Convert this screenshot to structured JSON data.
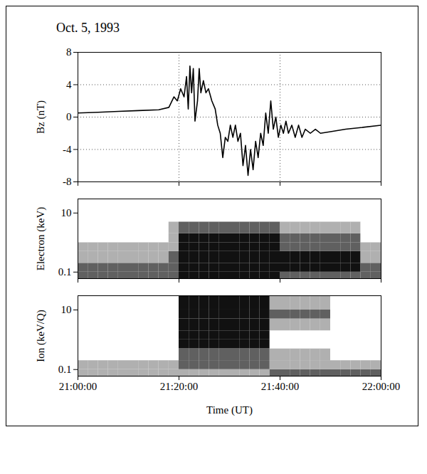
{
  "chart_data": [
    {
      "type": "line",
      "title": "Oct. 5, 1993",
      "ylabel": "Bz (nT)",
      "color": "#000000",
      "grid": true,
      "tick_labels": "y",
      "xlim": [
        "21:00:00",
        "22:00:00"
      ],
      "xticks": [
        "21:00:00",
        "21:20:00",
        "21:40:00",
        "22:00:00"
      ],
      "ylim": [
        -8,
        8
      ],
      "yticks": [
        -8,
        -4,
        0,
        4,
        8
      ],
      "x": [
        "21:00:00",
        "21:04:00",
        "21:08:00",
        "21:12:00",
        "21:16:00",
        "21:18:00",
        "21:19:00",
        "21:19:40",
        "21:20:20",
        "21:21:00",
        "21:21:30",
        "21:21:50",
        "21:22:10",
        "21:22:30",
        "21:22:50",
        "21:23:10",
        "21:23:40",
        "21:24:00",
        "21:24:20",
        "21:24:50",
        "21:25:20",
        "21:25:50",
        "21:26:30",
        "21:27:10",
        "21:27:40",
        "21:28:10",
        "21:28:40",
        "21:29:10",
        "21:29:40",
        "21:30:10",
        "21:30:40",
        "21:31:10",
        "21:31:40",
        "21:32:10",
        "21:32:40",
        "21:33:10",
        "21:33:40",
        "21:34:10",
        "21:34:40",
        "21:35:10",
        "21:35:40",
        "21:36:10",
        "21:36:40",
        "21:37:10",
        "21:37:40",
        "21:38:10",
        "21:38:40",
        "21:39:10",
        "21:39:40",
        "21:40:10",
        "21:40:40",
        "21:41:10",
        "21:41:40",
        "21:42:20",
        "21:43:00",
        "21:43:40",
        "21:44:20",
        "21:45:00",
        "21:46:00",
        "21:47:00",
        "21:48:00",
        "21:50:00",
        "21:53:00",
        "21:56:00",
        "22:00:00"
      ],
      "values": [
        0.5,
        0.6,
        0.7,
        0.8,
        0.9,
        1.2,
        2.5,
        2,
        3.5,
        2.5,
        5,
        1,
        6.3,
        3,
        6,
        -0.5,
        2,
        6,
        3,
        4.5,
        3,
        3.5,
        2,
        1,
        -1,
        -2,
        -5,
        -2.5,
        -3,
        -1,
        -2.5,
        -1,
        -3,
        -2,
        -6,
        -3.5,
        -7.2,
        -4,
        -6.5,
        -3,
        -5,
        -2,
        -3.5,
        0.5,
        -2,
        2,
        -1.5,
        0,
        -2.5,
        -1,
        -2,
        -0.5,
        -2,
        -1,
        -2.5,
        -1,
        -2.5,
        -1.5,
        -2,
        -1.5,
        -2,
        -1.8,
        -1.5,
        -1.3,
        -1
      ]
    },
    {
      "type": "heatmap",
      "ylabel": "Electron (keV)",
      "log": "y",
      "tick_labels": "y",
      "xlim": [
        "21:00:00",
        "22:00:00"
      ],
      "xticks": [
        "21:00:00",
        "21:20:00",
        "21:40:00",
        "22:00:00"
      ],
      "ylim": [
        0.06,
        30
      ],
      "yticks": [
        0.1,
        10
      ],
      "time_bins": [
        "21:00:00",
        "21:02:00",
        "21:04:00",
        "21:06:00",
        "21:08:00",
        "21:10:00",
        "21:12:00",
        "21:14:00",
        "21:16:00",
        "21:18:00",
        "21:20:00",
        "21:22:00",
        "21:24:00",
        "21:26:00",
        "21:28:00",
        "21:30:00",
        "21:32:00",
        "21:34:00",
        "21:36:00",
        "21:38:00",
        "21:40:00",
        "21:42:00",
        "21:44:00",
        "21:46:00",
        "21:48:00",
        "21:50:00",
        "21:52:00",
        "21:54:00",
        "21:56:00",
        "21:58:00",
        "22:00:00"
      ],
      "energy_bins": [
        0.06,
        0.1,
        0.2,
        0.5,
        1,
        2,
        5,
        10,
        30
      ],
      "cells": [
        [
          2,
          2,
          1,
          1,
          0,
          0,
          0,
          0
        ],
        [
          2,
          2,
          1,
          1,
          0,
          0,
          0,
          0
        ],
        [
          2,
          2,
          1,
          1,
          0,
          0,
          0,
          0
        ],
        [
          2,
          2,
          1,
          1,
          0,
          0,
          0,
          0
        ],
        [
          2,
          2,
          1,
          1,
          0,
          0,
          0,
          0
        ],
        [
          2,
          2,
          1,
          1,
          0,
          0,
          0,
          0
        ],
        [
          2,
          2,
          1,
          1,
          0,
          0,
          0,
          0
        ],
        [
          2,
          2,
          1,
          1,
          0,
          0,
          0,
          0
        ],
        [
          2,
          2,
          1,
          1,
          0,
          0,
          0,
          0
        ],
        [
          2,
          2,
          2,
          1,
          1,
          1,
          0,
          0
        ],
        [
          3,
          3,
          3,
          3,
          3,
          2,
          0,
          0
        ],
        [
          3,
          3,
          3,
          3,
          3,
          2,
          0,
          0
        ],
        [
          3,
          3,
          3,
          3,
          3,
          2,
          0,
          0
        ],
        [
          3,
          3,
          3,
          3,
          3,
          2,
          0,
          0
        ],
        [
          3,
          3,
          3,
          3,
          3,
          2,
          0,
          0
        ],
        [
          3,
          3,
          3,
          3,
          3,
          2,
          0,
          0
        ],
        [
          3,
          3,
          3,
          3,
          3,
          2,
          0,
          0
        ],
        [
          3,
          3,
          3,
          3,
          3,
          2,
          0,
          0
        ],
        [
          3,
          3,
          3,
          3,
          3,
          2,
          0,
          0
        ],
        [
          3,
          3,
          3,
          3,
          3,
          2,
          0,
          0
        ],
        [
          2,
          3,
          3,
          2,
          2,
          1,
          0,
          0
        ],
        [
          2,
          3,
          3,
          2,
          2,
          1,
          0,
          0
        ],
        [
          2,
          3,
          3,
          2,
          2,
          1,
          0,
          0
        ],
        [
          2,
          3,
          3,
          2,
          2,
          1,
          0,
          0
        ],
        [
          2,
          3,
          3,
          2,
          2,
          1,
          0,
          0
        ],
        [
          2,
          3,
          3,
          2,
          2,
          1,
          0,
          0
        ],
        [
          2,
          3,
          3,
          2,
          2,
          1,
          0,
          0
        ],
        [
          2,
          3,
          3,
          2,
          2,
          1,
          0,
          0
        ],
        [
          2,
          2,
          1,
          1,
          0,
          0,
          0,
          0
        ],
        [
          2,
          2,
          1,
          1,
          0,
          0,
          0,
          0
        ]
      ]
    },
    {
      "type": "heatmap",
      "ylabel": "Ion (keV/Q)",
      "xlabel": "Time (UT)",
      "log": "y",
      "xlim": [
        "21:00:00",
        "22:00:00"
      ],
      "xticks": [
        "21:00:00",
        "21:20:00",
        "21:40:00",
        "22:00:00"
      ],
      "ylim": [
        0.06,
        30
      ],
      "yticks": [
        0.1,
        10
      ],
      "time_bins": [
        "21:00:00",
        "21:02:00",
        "21:04:00",
        "21:06:00",
        "21:08:00",
        "21:10:00",
        "21:12:00",
        "21:14:00",
        "21:16:00",
        "21:18:00",
        "21:20:00",
        "21:22:00",
        "21:24:00",
        "21:26:00",
        "21:28:00",
        "21:30:00",
        "21:32:00",
        "21:34:00",
        "21:36:00",
        "21:38:00",
        "21:40:00",
        "21:42:00",
        "21:44:00",
        "21:46:00",
        "21:48:00",
        "21:50:00",
        "21:52:00",
        "21:54:00",
        "21:56:00",
        "21:58:00",
        "22:00:00"
      ],
      "energy_bins": [
        0.06,
        0.1,
        0.2,
        0.5,
        1,
        2,
        5,
        10,
        30
      ],
      "cells": [
        [
          1,
          1,
          0,
          0,
          0,
          0,
          0,
          0
        ],
        [
          1,
          1,
          0,
          0,
          0,
          0,
          0,
          0
        ],
        [
          1,
          1,
          0,
          0,
          0,
          0,
          0,
          0
        ],
        [
          1,
          1,
          0,
          0,
          0,
          0,
          0,
          0
        ],
        [
          1,
          1,
          0,
          0,
          0,
          0,
          0,
          0
        ],
        [
          1,
          1,
          0,
          0,
          0,
          0,
          0,
          0
        ],
        [
          1,
          1,
          0,
          0,
          0,
          0,
          0,
          0
        ],
        [
          1,
          1,
          0,
          0,
          0,
          0,
          0,
          0
        ],
        [
          1,
          1,
          0,
          0,
          0,
          0,
          0,
          0
        ],
        [
          1,
          1,
          0,
          0,
          0,
          0,
          0,
          0
        ],
        [
          1,
          2,
          2,
          3,
          3,
          3,
          3,
          3
        ],
        [
          1,
          2,
          2,
          3,
          3,
          3,
          3,
          3
        ],
        [
          1,
          2,
          2,
          3,
          3,
          3,
          3,
          3
        ],
        [
          1,
          2,
          2,
          3,
          3,
          3,
          3,
          3
        ],
        [
          1,
          2,
          2,
          3,
          3,
          3,
          3,
          3
        ],
        [
          1,
          2,
          2,
          3,
          3,
          3,
          3,
          3
        ],
        [
          1,
          2,
          2,
          3,
          3,
          3,
          3,
          3
        ],
        [
          1,
          2,
          2,
          3,
          3,
          3,
          3,
          3
        ],
        [
          1,
          2,
          2,
          3,
          3,
          3,
          3,
          3
        ],
        [
          2,
          1,
          1,
          0,
          0,
          1,
          2,
          1
        ],
        [
          2,
          1,
          1,
          0,
          0,
          1,
          2,
          1
        ],
        [
          2,
          1,
          1,
          0,
          0,
          1,
          2,
          1
        ],
        [
          2,
          1,
          1,
          0,
          0,
          1,
          2,
          1
        ],
        [
          2,
          1,
          1,
          0,
          0,
          1,
          2,
          1
        ],
        [
          2,
          1,
          1,
          0,
          0,
          1,
          2,
          1
        ],
        [
          2,
          1,
          0,
          0,
          0,
          0,
          0,
          0
        ],
        [
          2,
          1,
          0,
          0,
          0,
          0,
          0,
          0
        ],
        [
          2,
          1,
          0,
          0,
          0,
          0,
          0,
          0
        ],
        [
          2,
          1,
          0,
          0,
          0,
          0,
          0,
          0
        ],
        [
          2,
          1,
          0,
          0,
          0,
          0,
          0,
          0
        ]
      ]
    }
  ]
}
